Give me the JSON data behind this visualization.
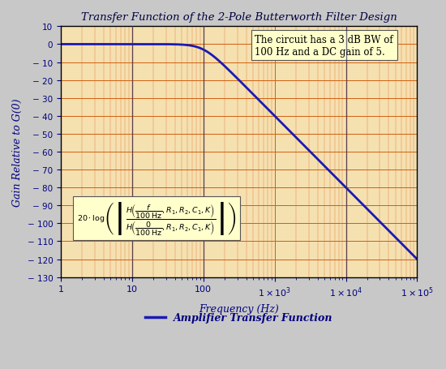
{
  "title": "Transfer Function of the 2-Pole Butterworth Filter Design",
  "xlabel": "Frequency (Hz)",
  "ylabel": "Gain Relative to G(0)",
  "xmin": 1,
  "xmax": 100000,
  "ymin": -130,
  "ymax": 10,
  "yticks": [
    10,
    0,
    -10,
    -20,
    -30,
    -40,
    -50,
    -60,
    -70,
    -80,
    -90,
    -100,
    -110,
    -120,
    -130
  ],
  "ytick_labels": [
    "10",
    "0",
    "− 10",
    "− 20",
    "− 30",
    "− 40",
    "− 50",
    "− 60",
    "− 70",
    "− 80",
    "− 90",
    "− 100",
    "− 110",
    "− 120",
    "− 130"
  ],
  "xtick_positions": [
    1,
    10,
    100,
    1000,
    10000,
    100000
  ],
  "xtick_labels": [
    "1",
    "10",
    "100",
    "$1\\times10^3$",
    "$1\\times10^4$",
    "$1\\times10^5$"
  ],
  "f0": 100,
  "filter_order": 2,
  "line_color": "#1a1ab4",
  "line_width": 2.0,
  "bg_color": "#c8c8c8",
  "plot_bg_color": "#f5e0b0",
  "grid_major_color": "#d06010",
  "grid_minor_color": "#e08040",
  "vline_color": "#303060",
  "vline_positions": [
    10,
    100,
    10000
  ],
  "annotation1_text": "The circuit has a 3 dB BW of\n100 Hz and a DC gain of 5.",
  "annotation1_bg": "#ffffcc",
  "legend_label": "Amplifier Transfer Function",
  "text_color": "#000080",
  "title_color": "#000040"
}
